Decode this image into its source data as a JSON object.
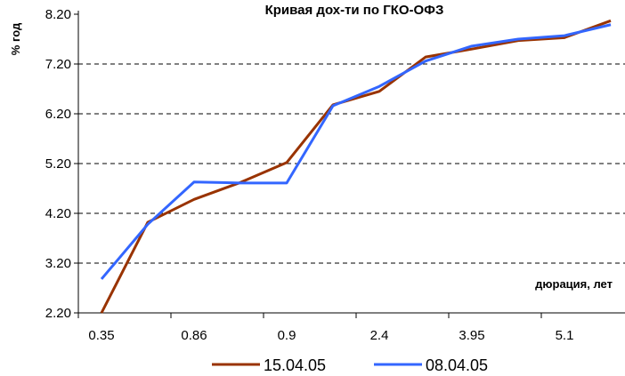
{
  "chart_data": {
    "type": "line",
    "title": "Кривая дох-ти по ГКО-ОФЗ",
    "ylabel": "% год",
    "xlabel": "дюрация,  лет",
    "ylim": [
      2.2,
      8.2
    ],
    "yticks": [
      "8.20",
      "7.20",
      "6.20",
      "5.20",
      "4.20",
      "3.20",
      "2.20"
    ],
    "x_tick_labels": [
      "0.35",
      "0.86",
      "0.9",
      "2.4",
      "3.95",
      "5.1"
    ],
    "grid": true,
    "legend_position": "bottom",
    "series": [
      {
        "name": "15.04.05",
        "color": "#993300",
        "values": [
          2.2,
          4.02,
          4.48,
          4.82,
          5.22,
          6.38,
          6.65,
          7.34,
          7.5,
          7.67,
          7.73,
          8.07
        ]
      },
      {
        "name": "08.04.05",
        "color": "#3366ff",
        "values": [
          2.88,
          3.98,
          4.83,
          4.81,
          4.81,
          6.36,
          6.75,
          7.26,
          7.56,
          7.7,
          7.77,
          7.99
        ]
      }
    ]
  }
}
